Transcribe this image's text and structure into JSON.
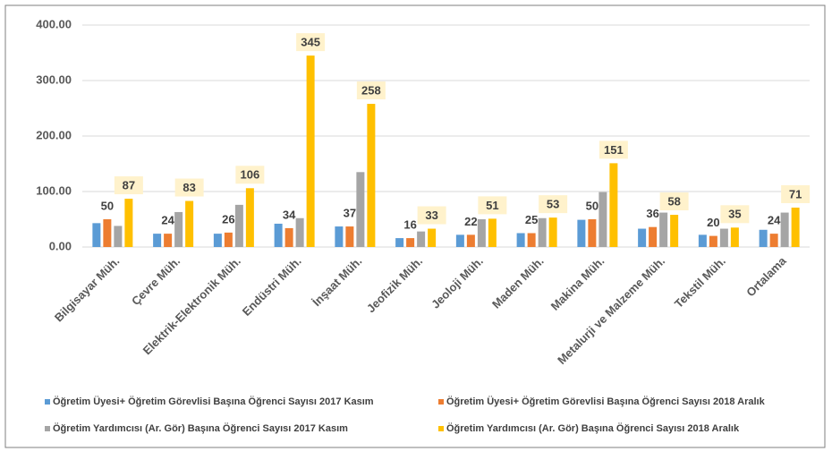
{
  "chart_data": {
    "type": "bar",
    "categories": [
      "Bilgisayar Müh.",
      "Çevre Müh.",
      "Elektrik-Elektronik Müh.",
      "Endüstri Müh.",
      "İnşaat Müh.",
      "Jeofizik Müh.",
      "Jeoloji Müh.",
      "Maden Müh.",
      "Makina Müh.",
      "Metalurji ve Malzeme Müh.",
      "Tekstil Müh.",
      "Ortalama"
    ],
    "series": [
      {
        "name": "Öğretim Üyesi+ Öğretim Görevlisi Başına Öğrenci Sayısı 2017 Kasım",
        "color": "#5b9bd5",
        "data_labels": false,
        "values": [
          43,
          24,
          24,
          42,
          37,
          16,
          22,
          25,
          49,
          33,
          22,
          31
        ]
      },
      {
        "name": "Öğretim Üyesi+ Öğretim Görevlisi Başına Öğrenci Sayısı 2018 Aralık",
        "color": "#ed7d31",
        "data_labels": true,
        "values": [
          50,
          24,
          26,
          34,
          37,
          16,
          22,
          25,
          50,
          36,
          20,
          24
        ]
      },
      {
        "name": "Öğretim Yardımcısı (Ar. Gör) Başına Öğrenci Sayısı 2017 Kasım",
        "color": "#a5a5a5",
        "data_labels": false,
        "values": [
          38,
          63,
          76,
          52,
          135,
          28,
          50,
          52,
          99,
          62,
          33,
          62
        ]
      },
      {
        "name": "Öğretim Yardımcısı (Ar. Gör) Başına Öğrenci Sayısı 2018 Aralık",
        "color": "#ffc000",
        "data_labels": true,
        "values": [
          87,
          83,
          106,
          345,
          258,
          33,
          51,
          53,
          151,
          58,
          35,
          71
        ]
      }
    ],
    "ylim": [
      0,
      400
    ],
    "yticks": [
      {
        "value": 0,
        "label": "0.00"
      },
      {
        "value": 100,
        "label": "100.00"
      },
      {
        "value": 200,
        "label": "200.00"
      },
      {
        "value": 300,
        "label": "300.00"
      },
      {
        "value": 400,
        "label": "400.00"
      }
    ],
    "grid": true,
    "legend": "bottom"
  }
}
